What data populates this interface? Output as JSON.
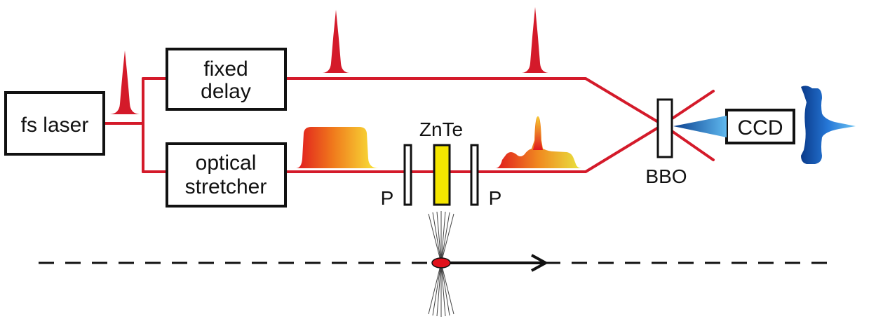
{
  "labels": {
    "laser": "fs laser",
    "fixed_delay_line1": "fixed",
    "fixed_delay_line2": "delay",
    "stretcher_line1": "optical",
    "stretcher_line2": "stretcher",
    "crystal": "ZnTe",
    "polarizer_left": "P",
    "polarizer_right": "P",
    "bbo": "BBO",
    "camera": "CCD"
  },
  "colors": {
    "beam": "#d41a2a",
    "pulse": "#d41a2a",
    "crystal_fill": "#f5e600",
    "spectrum_gradient_start": "#e0181e",
    "spectrum_gradient_end": "#f9ea3a",
    "ccd_signal": "#1f6fd0",
    "electron_bunch": "#e0101a"
  },
  "icons": {
    "pulse": "pulse-icon",
    "stretched_spectrum": "stretched-spectrum-icon",
    "modulated_spectrum": "modulated-spectrum-icon",
    "ccd_signal": "ccd-signal-icon",
    "electron_bunch": "electron-bunch-icon"
  }
}
